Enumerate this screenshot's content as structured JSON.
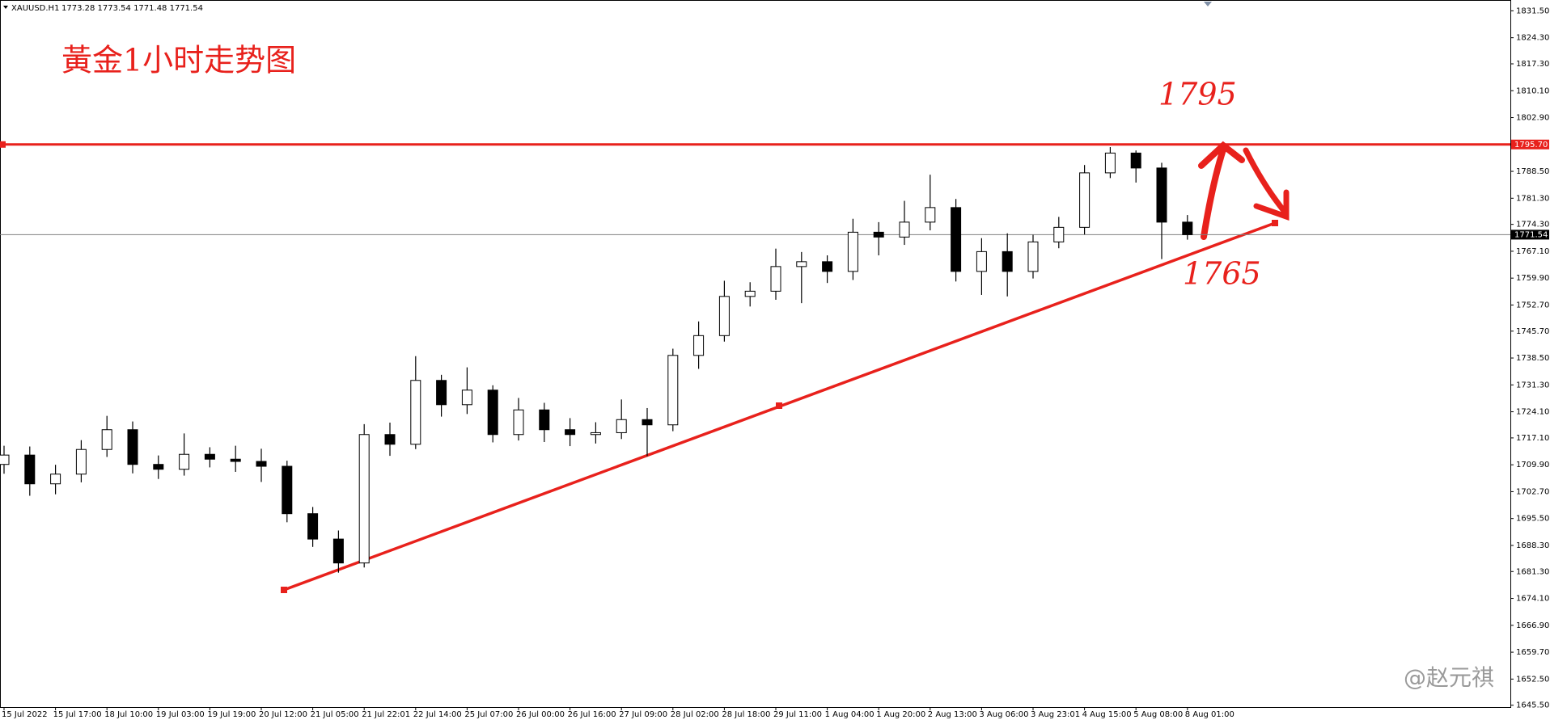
{
  "chart_data": {
    "type": "candlestick",
    "title": "XAUUSD.H1",
    "quote": "1773.28 1773.54 1771.48 1771.54",
    "annotations": [
      "黃金1小时走势图",
      "1795",
      "1765"
    ],
    "watermark": "@赵元祺",
    "color": "#000000",
    "up_color": "#ffffff",
    "down_color": "#000000",
    "categories": [
      "15 Jul 2022",
      null,
      "15 Jul 17:00",
      null,
      "18 Jul 10:00",
      null,
      "19 Jul 03:00",
      null,
      "19 Jul 19:00",
      null,
      "20 Jul 12:00",
      null,
      "21 Jul 05:00",
      null,
      "21 Jul 22:01",
      null,
      "22 Jul 14:00",
      null,
      "25 Jul 07:00",
      null,
      "26 Jul 00:00",
      null,
      "26 Jul 16:00",
      null,
      "27 Jul 09:00",
      null,
      "28 Jul 02:00",
      null,
      "28 Jul 18:00",
      null,
      "29 Jul 11:00",
      null,
      "1 Aug 04:00",
      null,
      "1 Aug 20:00",
      null,
      "2 Aug 13:00",
      null,
      "3 Aug 06:00",
      null,
      "3 Aug 23:01",
      null,
      "4 Aug 15:00",
      null,
      "5 Aug 08:00",
      null,
      "8 Aug 01:00"
    ],
    "open": [
      1710.0,
      1712.5,
      1704.8,
      1707.4,
      1714.0,
      1719.3,
      1710.0,
      1708.7,
      1712.7,
      1711.4,
      1710.8,
      1709.5,
      1696.8,
      1690.0,
      1683.6,
      1718.0,
      1715.4,
      1732.5,
      1726.0,
      1729.9,
      1718.0,
      1724.6,
      1719.3,
      1718.0,
      1718.5,
      1722.0,
      1720.6,
      1739.2,
      1744.5,
      1755.0,
      1756.4,
      1763.0,
      1764.3,
      1761.7,
      1772.2,
      1770.9,
      1774.9,
      1778.8,
      1761.7,
      1767.0,
      1761.7,
      1769.6,
      1773.5,
      1788.1,
      1793.4,
      1789.4,
      1774.9
    ],
    "high": [
      1715.0,
      1714.8,
      1709.9,
      1716.5,
      1723.0,
      1721.5,
      1712.4,
      1718.3,
      1714.6,
      1715.0,
      1714.2,
      1711.0,
      1698.6,
      1692.3,
      1720.8,
      1721.2,
      1739.0,
      1734.0,
      1736.0,
      1731.2,
      1727.8,
      1726.5,
      1722.4,
      1721.3,
      1727.4,
      1725.1,
      1741.0,
      1748.3,
      1759.2,
      1758.8,
      1767.8,
      1766.9,
      1766.0,
      1775.8,
      1774.9,
      1780.6,
      1787.6,
      1781.1,
      1770.6,
      1771.9,
      1771.5,
      1776.3,
      1790.2,
      1795.0,
      1794.1,
      1790.8,
      1776.8
    ],
    "low": [
      1707.5,
      1701.6,
      1702.0,
      1705.2,
      1712.0,
      1707.6,
      1706.1,
      1707.0,
      1709.2,
      1708.0,
      1705.3,
      1694.5,
      1687.9,
      1681.0,
      1682.4,
      1712.3,
      1714.1,
      1722.8,
      1723.5,
      1715.9,
      1716.4,
      1716.0,
      1714.9,
      1715.6,
      1716.8,
      1712.2,
      1718.9,
      1735.6,
      1742.9,
      1752.3,
      1754.1,
      1753.2,
      1758.6,
      1759.4,
      1766.0,
      1768.8,
      1772.7,
      1759.0,
      1755.4,
      1755.0,
      1759.8,
      1767.9,
      1771.6,
      1786.7,
      1785.5,
      1765.0,
      1770.2
    ],
    "close": [
      1712.5,
      1704.8,
      1707.4,
      1714.0,
      1719.3,
      1710.0,
      1708.7,
      1712.7,
      1711.4,
      1710.8,
      1709.5,
      1696.8,
      1690.0,
      1683.6,
      1718.0,
      1715.4,
      1732.5,
      1726.0,
      1729.9,
      1718.0,
      1724.6,
      1719.3,
      1718.0,
      1718.5,
      1722.0,
      1720.6,
      1739.2,
      1744.5,
      1755.0,
      1756.4,
      1763.0,
      1764.3,
      1761.7,
      1772.2,
      1770.9,
      1774.9,
      1778.8,
      1761.7,
      1767.0,
      1761.7,
      1769.6,
      1773.5,
      1788.1,
      1793.4,
      1789.4,
      1774.9,
      1771.54
    ],
    "hline": {
      "value": 1795.7,
      "label": "1795.70",
      "color": "#e8211c"
    },
    "last": {
      "value": 1771.54,
      "label": "1771.54",
      "color": "#808080"
    },
    "ylim": [
      1645.0,
      1834.4
    ],
    "yticks": [
      {
        "value": 1831.5,
        "label": "1831.50"
      },
      {
        "value": 1824.3,
        "label": "1824.30"
      },
      {
        "value": 1817.3,
        "label": "1817.30"
      },
      {
        "value": 1810.1,
        "label": "1810.10"
      },
      {
        "value": 1802.9,
        "label": "1802.90"
      },
      {
        "value": 1788.5,
        "label": "1788.50"
      },
      {
        "value": 1781.3,
        "label": "1781.30"
      },
      {
        "value": 1774.3,
        "label": "1774.30"
      },
      {
        "value": 1767.1,
        "label": "1767.10"
      },
      {
        "value": 1759.9,
        "label": "1759.90"
      },
      {
        "value": 1752.7,
        "label": "1752.70"
      },
      {
        "value": 1745.7,
        "label": "1745.70"
      },
      {
        "value": 1738.5,
        "label": "1738.50"
      },
      {
        "value": 1731.3,
        "label": "1731.30"
      },
      {
        "value": 1724.1,
        "label": "1724.10"
      },
      {
        "value": 1717.1,
        "label": "1717.10"
      },
      {
        "value": 1709.9,
        "label": "1709.90"
      },
      {
        "value": 1702.7,
        "label": "1702.70"
      },
      {
        "value": 1695.5,
        "label": "1695.50"
      },
      {
        "value": 1688.3,
        "label": "1688.30"
      },
      {
        "value": 1681.3,
        "label": "1681.30"
      },
      {
        "value": 1674.1,
        "label": "1674.10"
      },
      {
        "value": 1666.9,
        "label": "1666.90"
      },
      {
        "value": 1659.7,
        "label": "1659.70"
      },
      {
        "value": 1652.5,
        "label": "1652.50"
      },
      {
        "value": 1645.5,
        "label": "1645.50"
      }
    ]
  }
}
